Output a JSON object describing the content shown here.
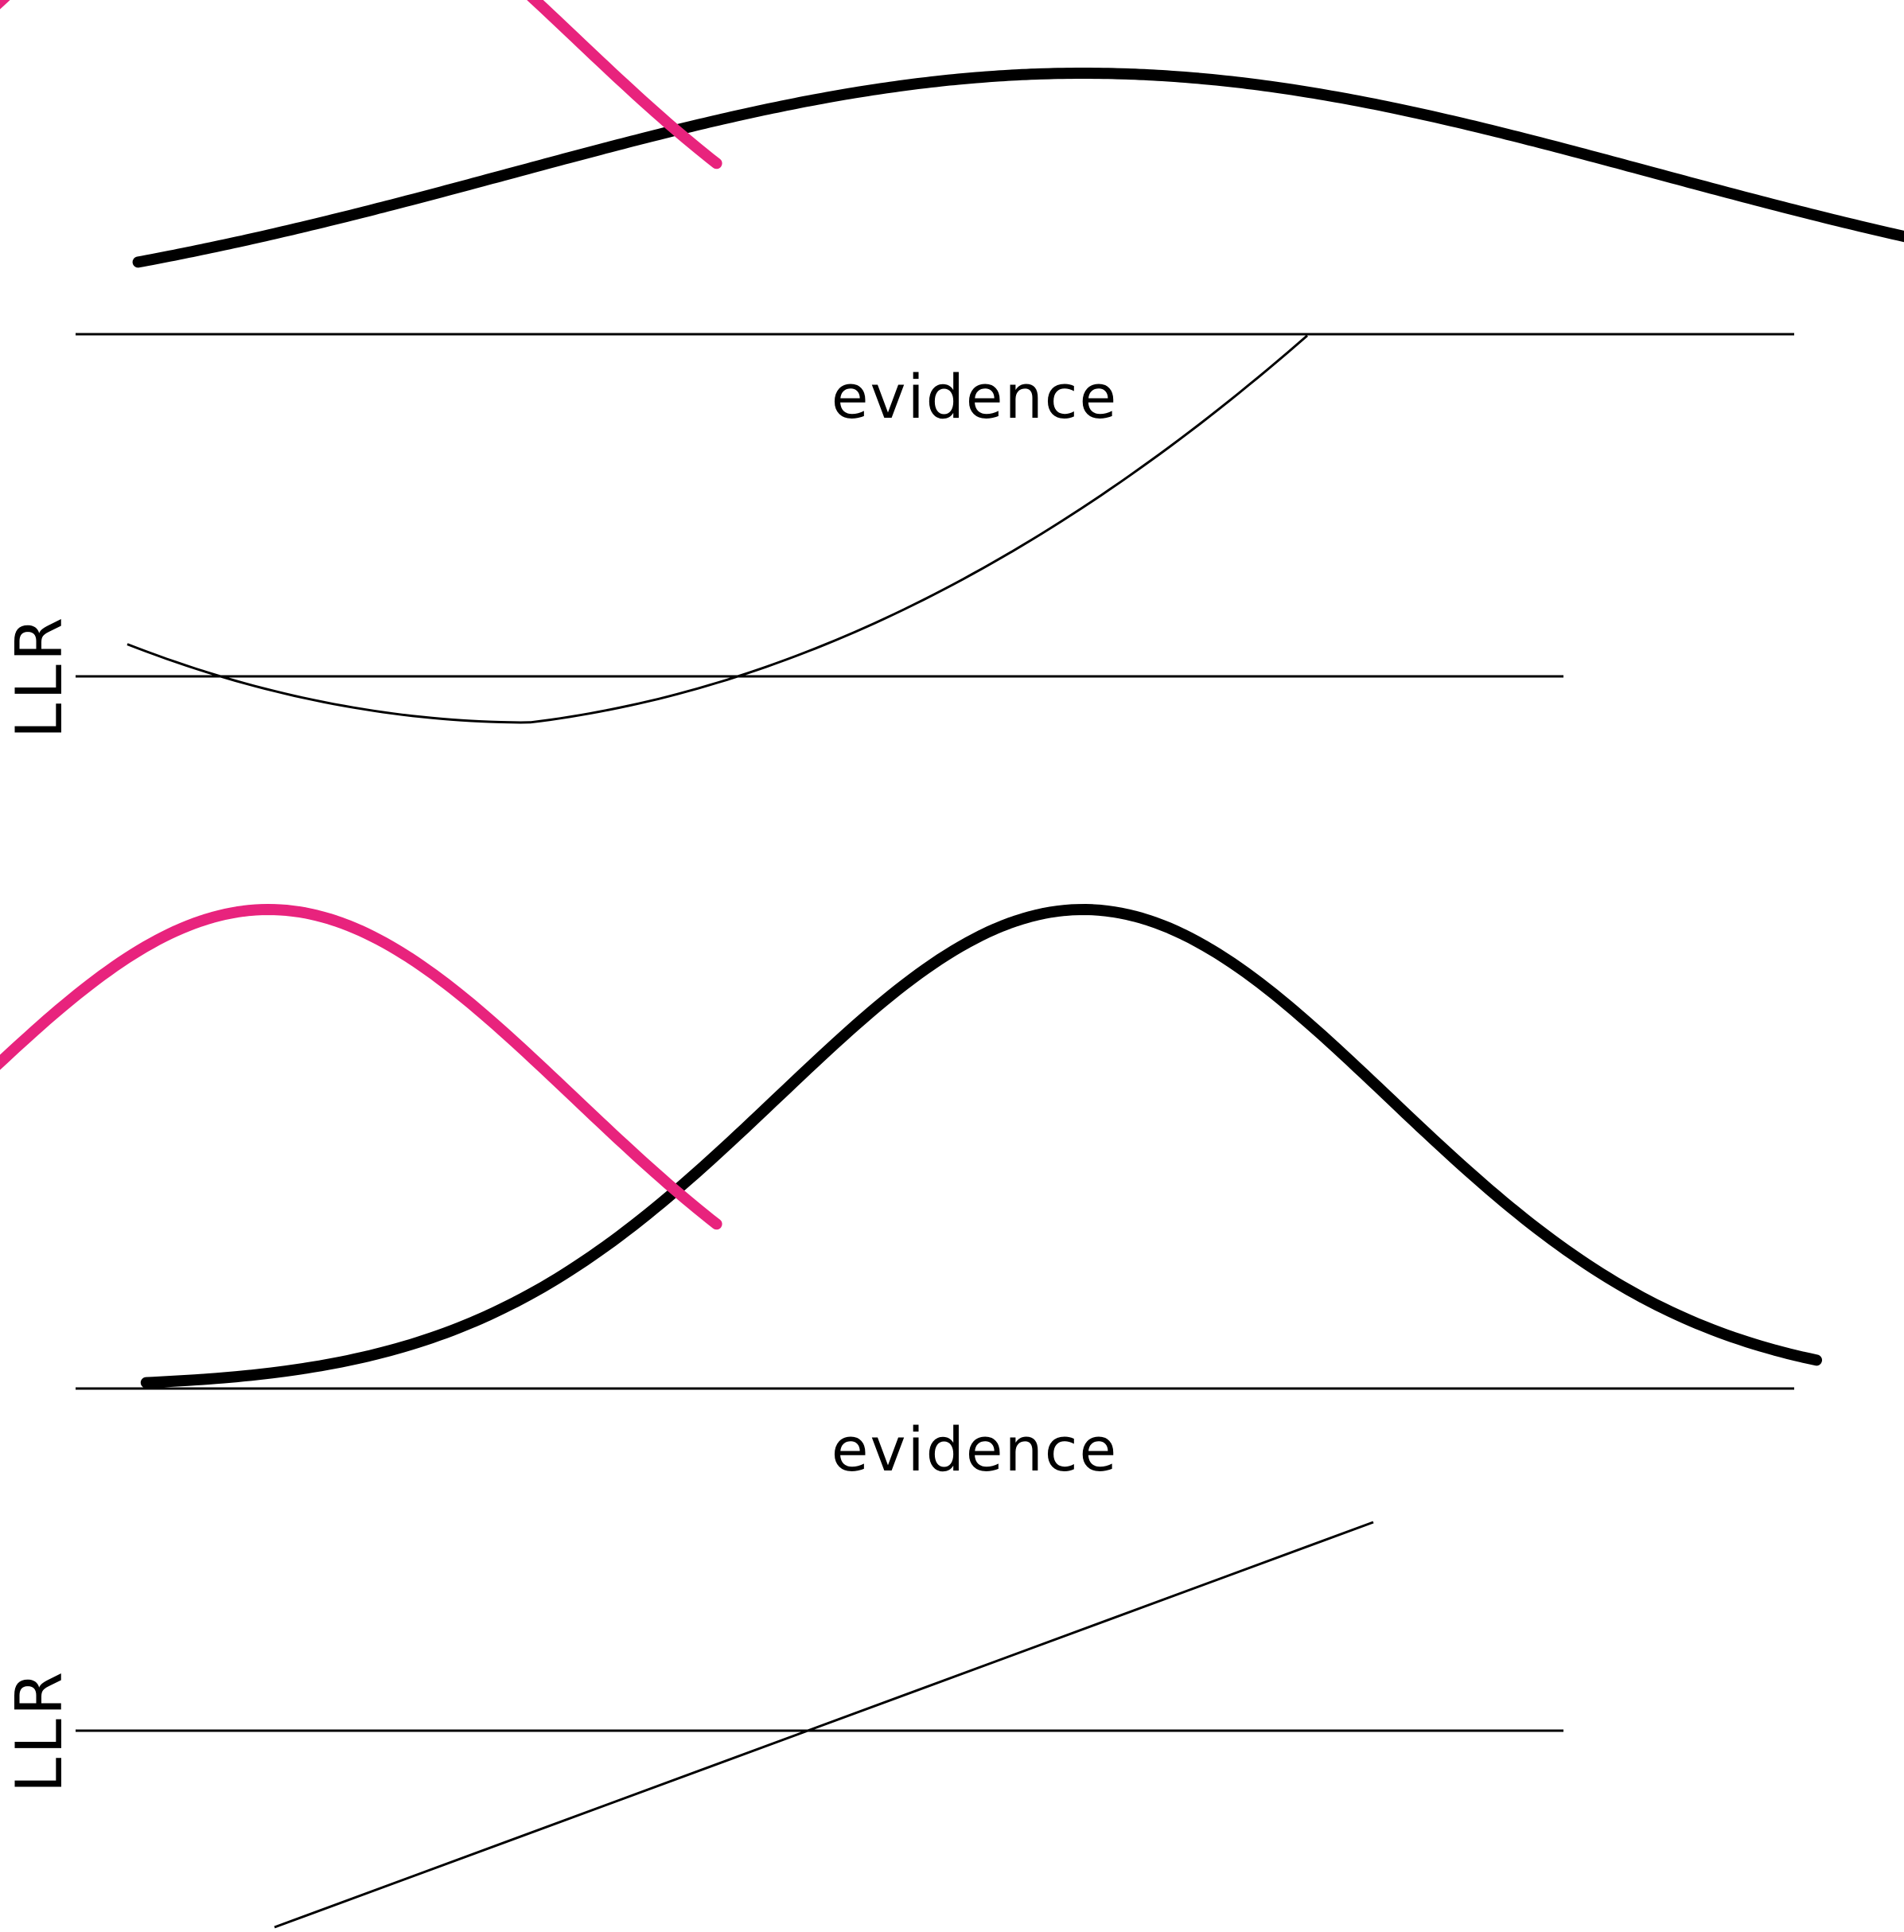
{
  "colors": {
    "background": "#ffffff",
    "ink": "#000000",
    "accent": "#e8237d"
  },
  "top_panel": {
    "density_xlabel": "evidence",
    "llr_ylabel": "LLR",
    "distributions": [
      {
        "color": "#e8237d",
        "mean": -0.8,
        "sd": 0.75,
        "peak": 1.0
      },
      {
        "color": "#000000",
        "mean": 1.2,
        "sd": 1.4,
        "peak": 0.53
      }
    ],
    "llr_curve": "quadratic"
  },
  "bottom_panel": {
    "density_xlabel": "evidence",
    "llr_ylabel": "LLR",
    "distributions": [
      {
        "color": "#e8237d",
        "mean": -0.8,
        "sd": 0.75,
        "peak": 1.0
      },
      {
        "color": "#000000",
        "mean": 1.2,
        "sd": 0.75,
        "peak": 1.0
      }
    ],
    "llr_curve": "linear"
  }
}
